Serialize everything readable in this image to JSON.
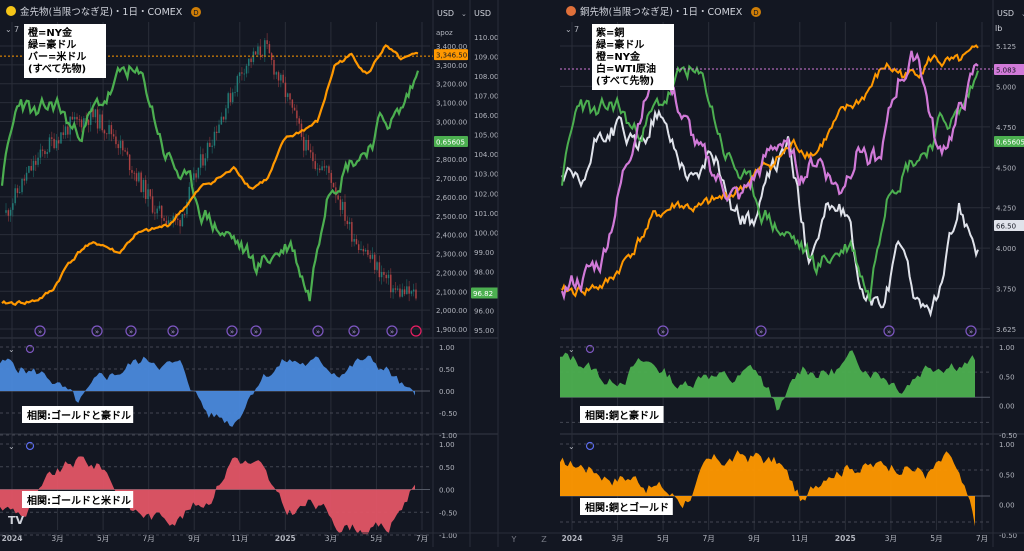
{
  "panels": [
    {
      "title": "金先物(当限つなぎ足)・1日・COMEX",
      "symbol_icon_color": "#f5c518",
      "indicator_count": "7",
      "axis_a_unit": "USD",
      "axis_b_unit": "USD",
      "axis_b_sub": "apoz",
      "legend": [
        "橙=NY金",
        "緑=豪ドル",
        "バー=米ドル",
        "(すべて先物)"
      ],
      "price_ticks_a": [
        "3,400.00",
        "3,300.00",
        "3,200.00",
        "3,100.00",
        "3,000.00",
        "2,900.00",
        "2,800.00",
        "2,700.00",
        "2,600.00",
        "2,500.00",
        "2,400.00",
        "2,300.00",
        "2,200.00",
        "2,100.00",
        "2,000.00",
        "1,900.00"
      ],
      "price_ticks_b": [
        "110.00",
        "109.00",
        "108.00",
        "107.00",
        "106.00",
        "105.00",
        "104.00",
        "103.00",
        "102.00",
        "101.00",
        "100.00",
        "99.00",
        "98.00",
        "97.00",
        "96.00",
        "95.00"
      ],
      "badges": [
        {
          "text": "3,346.50",
          "color": "#ff9800"
        },
        {
          "text": "0.65605",
          "color": "#4caf50"
        },
        {
          "text": "96.82",
          "color": "#4caf50"
        }
      ],
      "corr_ticks": [
        "1.00",
        "0.50",
        "0.00",
        "-0.50",
        "-1.00"
      ],
      "sub_labels": [
        "相関:ゴールドと豪ドル",
        "相関:ゴールドと米ドル"
      ],
      "time_labels": [
        "2024",
        "3月",
        "5月",
        "7月",
        "9月",
        "11月",
        "2025",
        "3月",
        "5月",
        "7月"
      ]
    },
    {
      "title": "銅先物(当限つなぎ足)・1日・COMEX",
      "symbol_icon_color": "#e0703a",
      "indicator_count": "7",
      "axis_a_unit": "USD",
      "axis_b_unit": "lb",
      "legend": [
        "紫=銅",
        "緑=豪ドル",
        "橙=NY金",
        "白=WTI原油",
        "(すべて先物)"
      ],
      "price_ticks_a": [
        "5.125",
        "5.000",
        "4.750",
        "4.500",
        "4.250",
        "4.000",
        "3.750",
        "3.625"
      ],
      "badges": [
        {
          "text": "5.083",
          "color": "#d17ad8"
        },
        {
          "text": "0.65605",
          "color": "#4caf50"
        },
        {
          "text": "66.50",
          "color": "#e0e3eb"
        }
      ],
      "corr_ticks": [
        "1.00",
        "0.50",
        "0.00",
        "-0.50"
      ],
      "sub_labels": [
        "相関:銅と豪ドル",
        "相関:銅とゴールド"
      ],
      "time_labels": [
        "2024",
        "3月",
        "5月",
        "7月",
        "9月",
        "11月",
        "2025",
        "3月",
        "5月",
        "7月"
      ]
    }
  ],
  "bottom_left_buttons": [
    "Y",
    "Z"
  ],
  "colors": {
    "background": "#131722",
    "grid": "#2a2e39",
    "gold": "#ff9800",
    "aud": "#4caf50",
    "copper": "#d17ad8",
    "oil": "#e0e3eb",
    "usd_candle_up": "#26a69a",
    "usd_candle_down": "#ef5350",
    "corr1_fill": "#4a89dc",
    "corr2_fill": "#e25566",
    "corr3_fill": "#4caf50",
    "corr4_fill": "#ff9800"
  },
  "chart_data": [
    {
      "type": "line",
      "title": "金先物(当限つなぎ足)・1日・COMEX",
      "x": [
        "2024",
        "3月",
        "5月",
        "7月",
        "9月",
        "11月",
        "2025",
        "3月",
        "5月",
        "7月"
      ],
      "series": [
        {
          "name": "NY金",
          "values": [
            2050,
            2080,
            2300,
            2400,
            2550,
            2700,
            2650,
            2900,
            3300,
            3346.5
          ]
        },
        {
          "name": "豪ドル",
          "values": [
            0.68,
            0.655,
            0.665,
            0.67,
            0.675,
            0.655,
            0.62,
            0.63,
            0.64,
            0.656
          ]
        },
        {
          "name": "米ドル",
          "values": [
            101,
            104,
            106,
            104.5,
            101,
            104,
            109,
            104,
            100,
            96.82
          ]
        }
      ]
    },
    {
      "type": "area",
      "title": "相関:ゴールドと豪ドル",
      "x": [
        "2024",
        "3月",
        "5月",
        "7月",
        "9月",
        "11月",
        "2025",
        "3月",
        "5月",
        "7月"
      ],
      "values": [
        0.6,
        0.5,
        -0.3,
        0.6,
        0.7,
        -0.5,
        0.6,
        0.7,
        0.5,
        -0.3
      ],
      "ylim": [
        -1,
        1
      ]
    },
    {
      "type": "area",
      "title": "相関:ゴールドと米ドル",
      "x": [
        "2024",
        "3月",
        "5月",
        "7月",
        "9月",
        "11月",
        "2025",
        "3月",
        "5月",
        "7月"
      ],
      "values": [
        -0.5,
        0.5,
        -0.5,
        -0.6,
        -0.3,
        0.7,
        -0.6,
        -0.4,
        -0.7,
        0.2
      ],
      "ylim": [
        -1,
        1
      ]
    },
    {
      "type": "line",
      "title": "銅先物(当限つなぎ足)・1日・COMEX",
      "x": [
        "2024",
        "3月",
        "5月",
        "7月",
        "9月",
        "11月",
        "2025",
        "3月",
        "5月",
        "7月"
      ],
      "series": [
        {
          "name": "銅",
          "values": [
            3.8,
            3.9,
            4.6,
            4.3,
            4.1,
            4.2,
            4.3,
            4.9,
            4.6,
            5.083
          ]
        },
        {
          "name": "豪ドル",
          "values": [
            0.68,
            0.655,
            0.665,
            0.67,
            0.675,
            0.655,
            0.62,
            0.63,
            0.64,
            0.656
          ]
        },
        {
          "name": "NY金",
          "values": [
            2050,
            2080,
            2300,
            2400,
            2550,
            2700,
            2650,
            2900,
            3300,
            3346.5
          ]
        },
        {
          "name": "WTI原油",
          "values": [
            72,
            80,
            78,
            82,
            68,
            70,
            76,
            66,
            58,
            66.5
          ]
        }
      ]
    },
    {
      "type": "area",
      "title": "相関:銅と豪ドル",
      "x": [
        "2024",
        "3月",
        "5月",
        "7月",
        "9月",
        "11月",
        "2025",
        "3月",
        "5月",
        "7月"
      ],
      "values": [
        0.7,
        0.5,
        0.7,
        0.6,
        0.2,
        0.6,
        0.5,
        0.7,
        0.8,
        0.8
      ],
      "ylim": [
        -0.75,
        1
      ]
    },
    {
      "type": "area",
      "title": "相関:銅とゴールド",
      "x": [
        "2024",
        "3月",
        "5月",
        "7月",
        "9月",
        "11月",
        "2025",
        "3月",
        "5月",
        "7月"
      ],
      "values": [
        0.7,
        0.6,
        0.5,
        0.7,
        0.8,
        0.6,
        0.7,
        0.6,
        0.7,
        -0.6
      ],
      "ylim": [
        -0.75,
        1
      ]
    }
  ]
}
